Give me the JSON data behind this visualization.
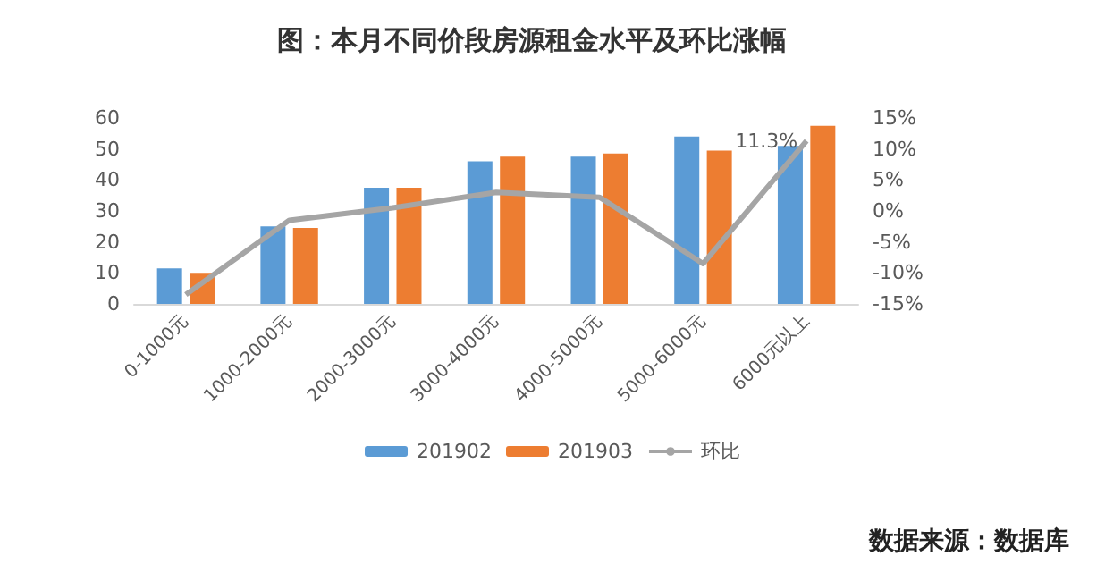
{
  "chart_data": {
    "type": "bar",
    "title": "图：本月不同价段房源租金水平及环比涨幅",
    "categories": [
      "0-1000元",
      "1000-2000元",
      "2000-3000元",
      "3000-4000元",
      "4000-5000元",
      "5000-6000元",
      "6000元以上"
    ],
    "series": [
      {
        "name": "201902",
        "color": "#5b9bd5",
        "values": [
          11.5,
          25,
          37.5,
          46,
          47.5,
          54,
          51
        ]
      },
      {
        "name": "201903",
        "color": "#ed7d31",
        "values": [
          10,
          24.5,
          37.5,
          47.5,
          48.5,
          49.5,
          57.5
        ]
      },
      {
        "name": "环比",
        "type": "line",
        "axis": "y2",
        "color": "#a5a5a5",
        "marker": "none",
        "values": [
          -13.5,
          -1.5,
          0.5,
          3,
          2.2,
          -8.5,
          11.3
        ],
        "value_labels": [
          null,
          null,
          null,
          null,
          null,
          null,
          "11.3%"
        ]
      }
    ],
    "ylim": [
      0,
      60
    ],
    "yticks": [
      0,
      10,
      20,
      30,
      40,
      50,
      60
    ],
    "y2lim": [
      -15,
      15
    ],
    "y2ticks": [
      {
        "value": -15,
        "label": "-15%"
      },
      {
        "value": -10,
        "label": "-10%"
      },
      {
        "value": -5,
        "label": "-5%"
      },
      {
        "value": 0,
        "label": "0%"
      },
      {
        "value": 5,
        "label": "5%"
      },
      {
        "value": 10,
        "label": "10%"
      },
      {
        "value": 15,
        "label": "15%"
      }
    ],
    "legend": "bottom",
    "grid": false,
    "annotations": [
      "数据来源：数据库"
    ]
  }
}
